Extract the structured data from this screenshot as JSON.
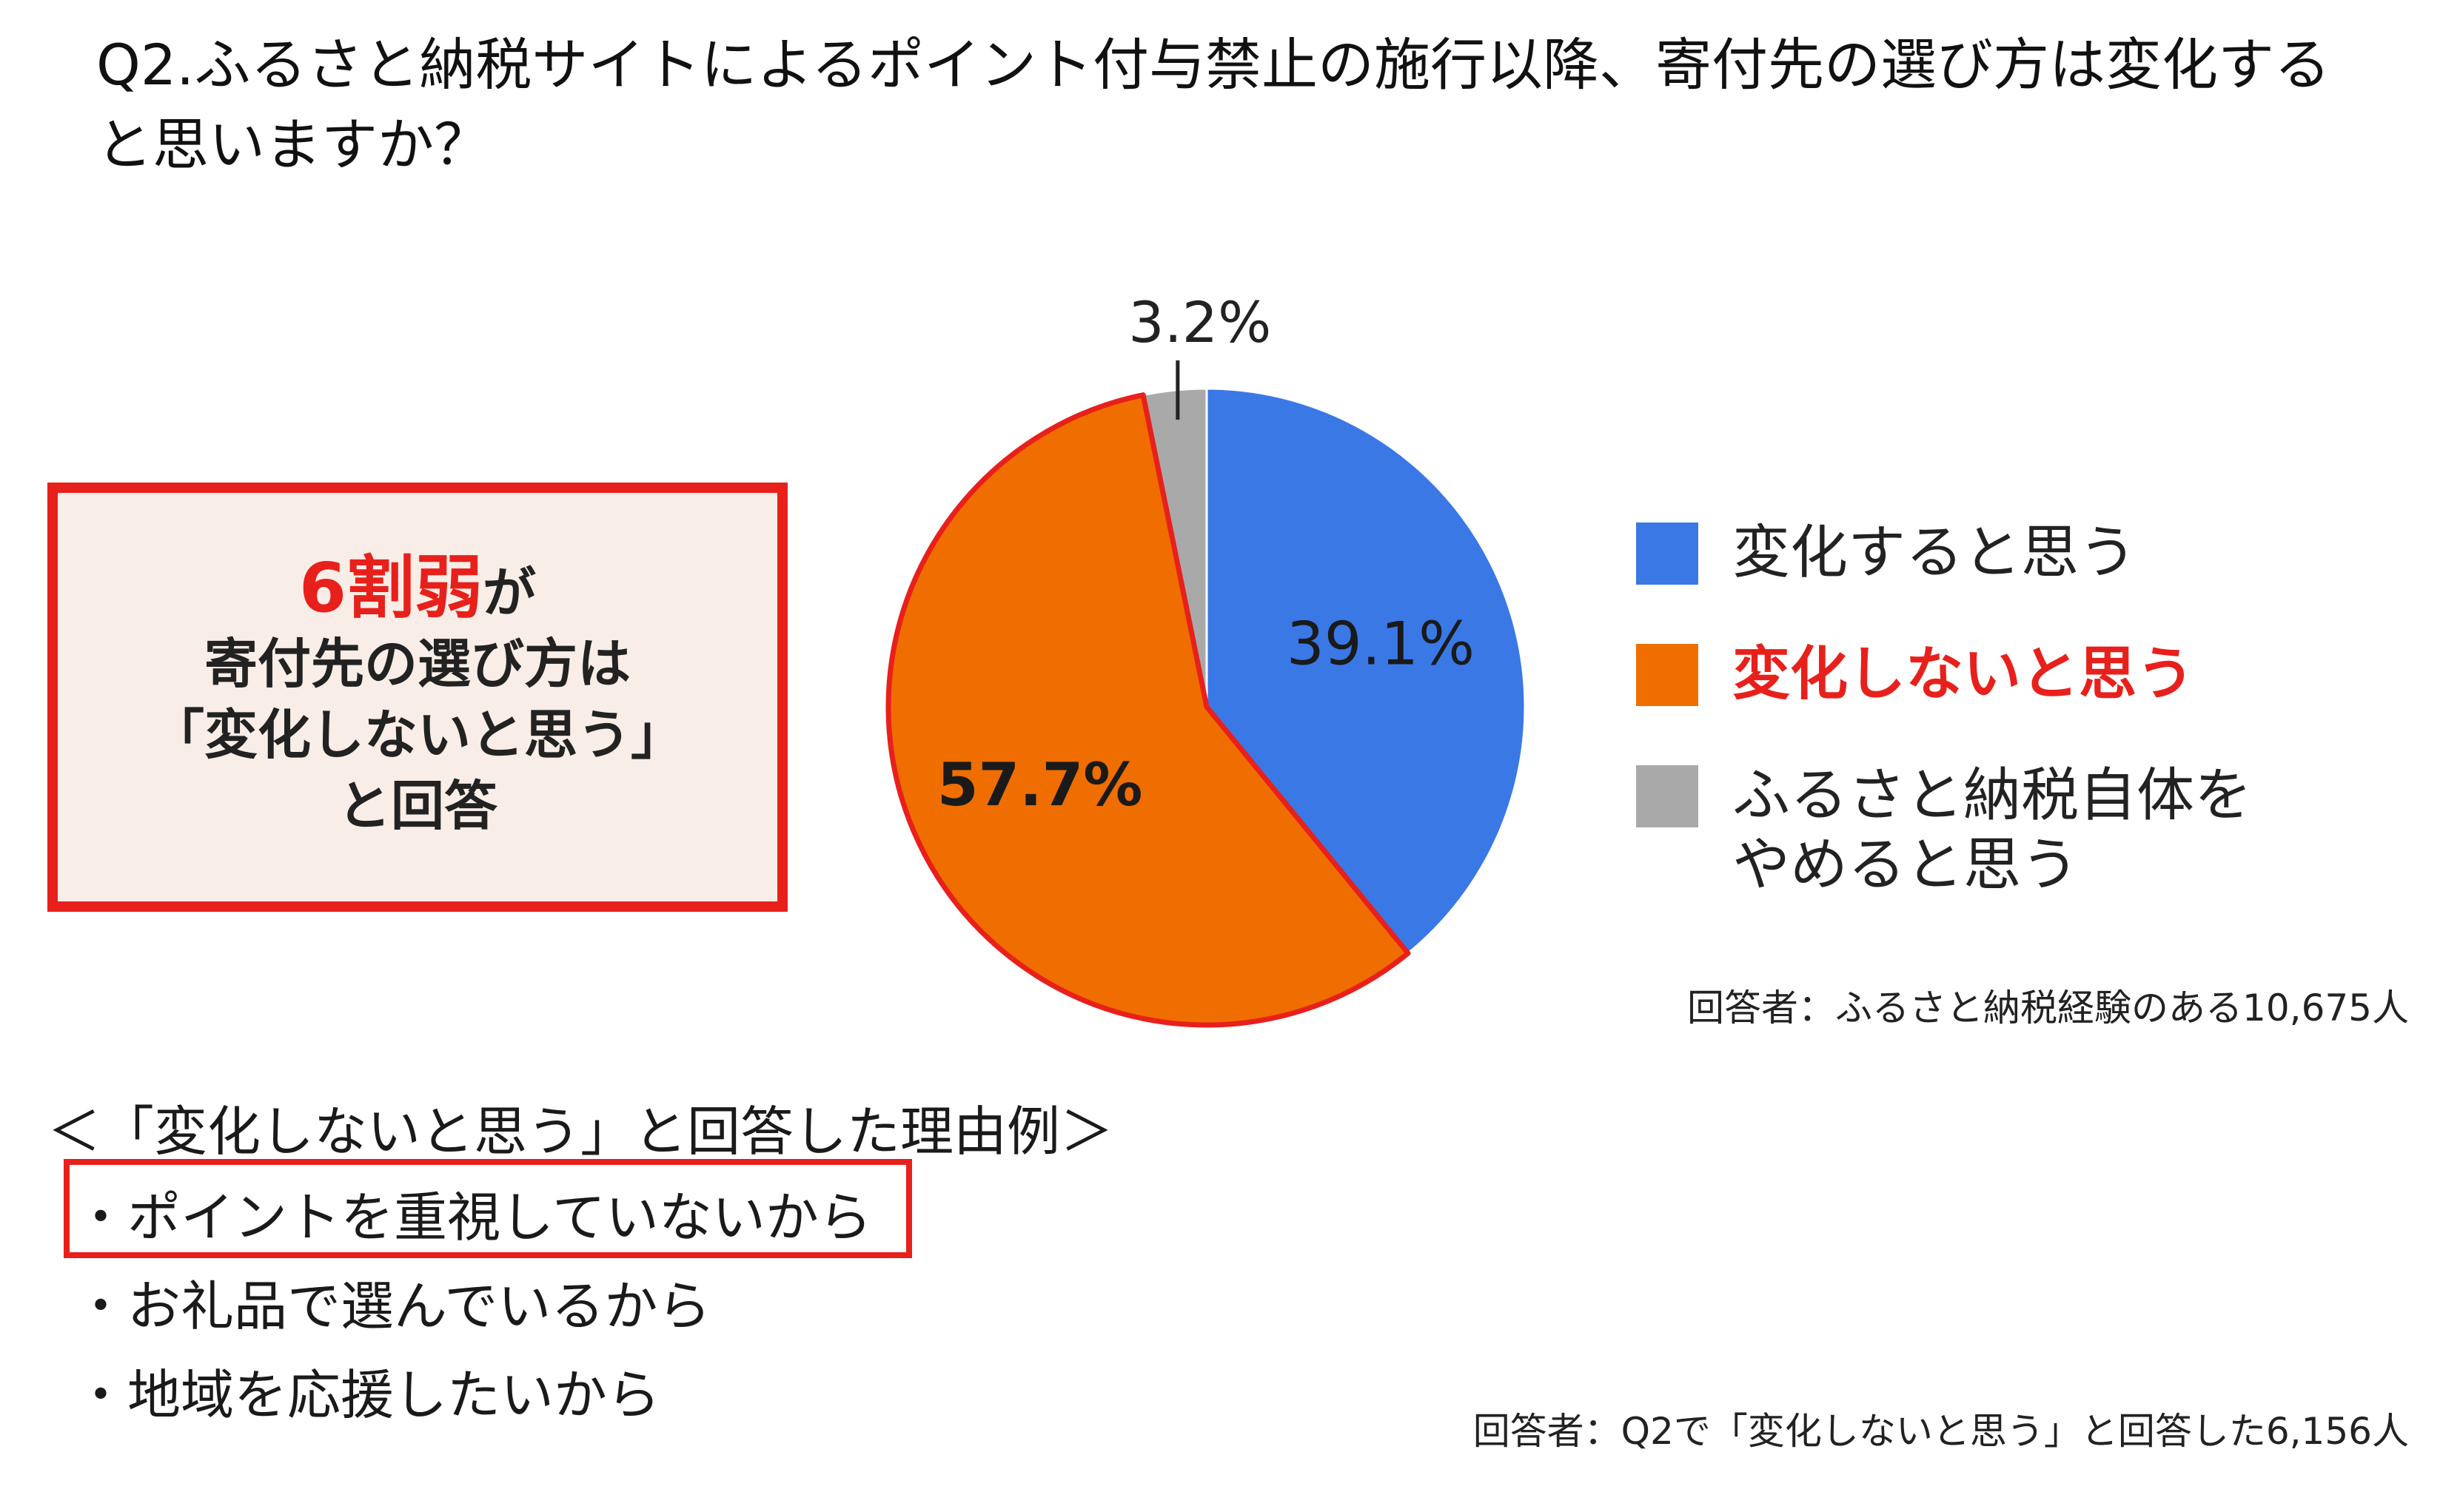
{
  "question": "Q2.ふるさと納税サイトによるポイント付与禁止の施行以降、寄付先の選び方は変化すると思いますか？",
  "callout": {
    "highlight": "6割弱",
    "highlight_suffix": "が",
    "line2": "寄付先の選び方は",
    "line3": "「変化しないと思う」",
    "line4": "と回答"
  },
  "chart_data": {
    "type": "pie",
    "slices": [
      {
        "label": "変化すると思う",
        "value": 39.1,
        "display": "39.1%",
        "color": "#3a78e6"
      },
      {
        "label": "変化しないと思う",
        "value": 57.7,
        "display": "57.7%",
        "color": "#f06d00"
      },
      {
        "label": "ふるさと納税自体をやめると思う",
        "value": 3.2,
        "display": "3.2%",
        "color": "#a9a9a9"
      }
    ],
    "legend_position": "right",
    "highlight_slice_border": "#e8201c"
  },
  "legend": {
    "item1": "変化すると思う",
    "item2": "変化しないと思う",
    "item3_line1": "ふるさと納税自体を",
    "item3_line2": "やめると思う"
  },
  "respondents_q2": "回答者：ふるさと納税経験のある10,675人",
  "reasons": {
    "title": "＜「変化しないと思う」と回答した理由例＞",
    "items": [
      "・ポイントを重視していないから",
      "・お礼品で選んでいるから",
      "・地域を応援したいから"
    ],
    "respondents": "回答者：Q2で「変化しないと思う」と回答した6,156人"
  }
}
